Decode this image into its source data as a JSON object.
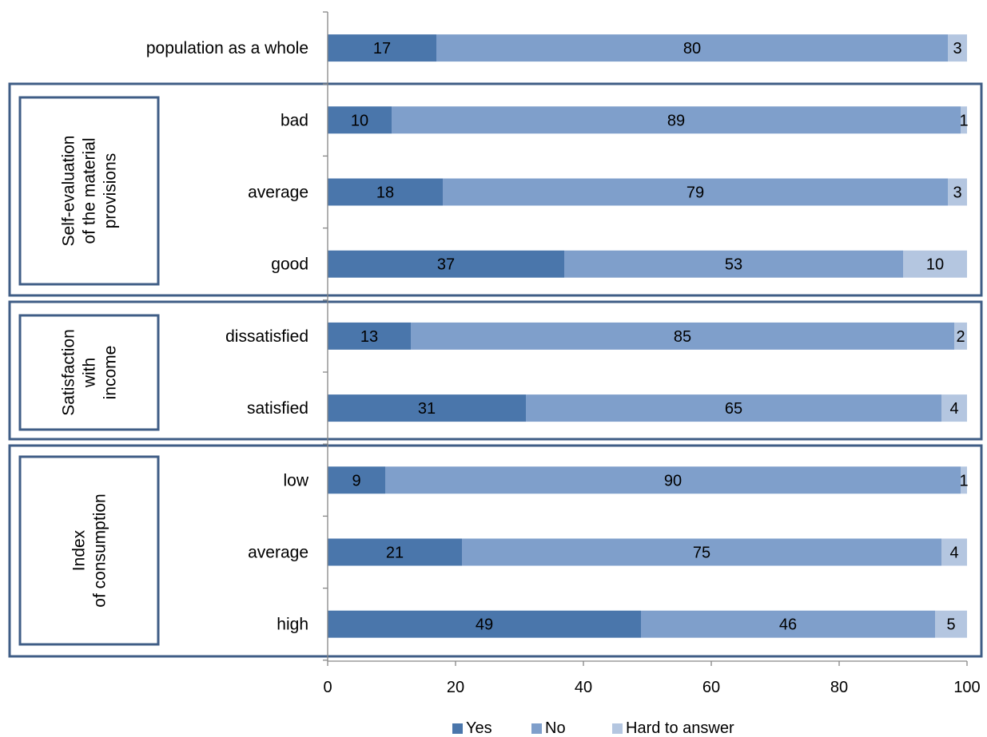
{
  "chart_data": {
    "type": "bar",
    "orientation": "horizontal",
    "stacked": true,
    "categories": [
      "population as a whole",
      "bad",
      "average",
      "good",
      "dissatisfied",
      "satisfied",
      "low",
      "average",
      "high"
    ],
    "series": [
      {
        "name": "Yes",
        "color": "#4a76ab",
        "values": [
          17,
          10,
          18,
          37,
          13,
          31,
          9,
          21,
          49
        ]
      },
      {
        "name": "No",
        "color": "#7f9fcb",
        "values": [
          80,
          89,
          79,
          53,
          85,
          65,
          90,
          75,
          46
        ]
      },
      {
        "name": "Hard to answer",
        "color": "#b4c6e0",
        "values": [
          3,
          1,
          3,
          10,
          2,
          4,
          1,
          4,
          5
        ]
      }
    ],
    "groups": [
      {
        "lines": [
          "Self-evaluation",
          "of the material",
          "provisions"
        ],
        "categories": [
          "bad",
          "average",
          "good"
        ]
      },
      {
        "lines": [
          "Satisfaction",
          "with",
          "income"
        ],
        "categories": [
          "dissatisfied",
          "satisfied"
        ]
      },
      {
        "lines": [
          "Index",
          "of consumption"
        ],
        "categories": [
          "low",
          "average",
          "high"
        ]
      }
    ],
    "xlim": [
      0,
      100
    ],
    "xticks": [
      "0",
      "20",
      "40",
      "60",
      "80",
      "100"
    ],
    "legend_position": "bottom",
    "grid": false
  }
}
